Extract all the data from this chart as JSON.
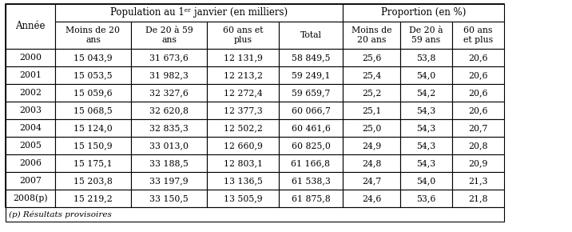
{
  "col_headers_row1": [
    "Année",
    "Population au 1er janvier (en milliers)",
    "Proportion (en %)"
  ],
  "col_headers_row1_span": [
    1,
    4,
    3
  ],
  "col_headers_row2": [
    "Moins de 20\nans",
    "De 20 à 59\nans",
    "60 ans et\nplus",
    "Total",
    "Moins de\n20 ans",
    "De 20 à\n59 ans",
    "60 ans\net plus"
  ],
  "rows": [
    [
      "2000",
      "15 043,9",
      "31 673,6",
      "12 131,9",
      "58 849,5",
      "25,6",
      "53,8",
      "20,6"
    ],
    [
      "2001",
      "15 053,5",
      "31 982,3",
      "12 213,2",
      "59 249,1",
      "25,4",
      "54,0",
      "20,6"
    ],
    [
      "2002",
      "15 059,6",
      "32 327,6",
      "12 272,4",
      "59 659,7",
      "25,2",
      "54,2",
      "20,6"
    ],
    [
      "2003",
      "15 068,5",
      "32 620,8",
      "12 377,3",
      "60 066,7",
      "25,1",
      "54,3",
      "20,6"
    ],
    [
      "2004",
      "15 124,0",
      "32 835,3",
      "12 502,2",
      "60 461,6",
      "25,0",
      "54,3",
      "20,7"
    ],
    [
      "2005",
      "15 150,9",
      "33 013,0",
      "12 660,9",
      "60 825,0",
      "24,9",
      "54,3",
      "20,8"
    ],
    [
      "2006",
      "15 175,1",
      "33 188,5",
      "12 803,1",
      "61 166,8",
      "24,8",
      "54,3",
      "20,9"
    ],
    [
      "2007",
      "15 203,8",
      "33 197,9",
      "13 136,5",
      "61 538,3",
      "24,7",
      "54,0",
      "21,3"
    ],
    [
      "2008(p)",
      "15 219,2",
      "33 150,5",
      "13 505,9",
      "61 875,8",
      "24,6",
      "53,6",
      "21,8"
    ]
  ],
  "footnote": "(p) Résultats provisoires",
  "bg_color": "#ffffff",
  "border_color": "#000000",
  "text_color": "#000000",
  "header_superscript": "er"
}
